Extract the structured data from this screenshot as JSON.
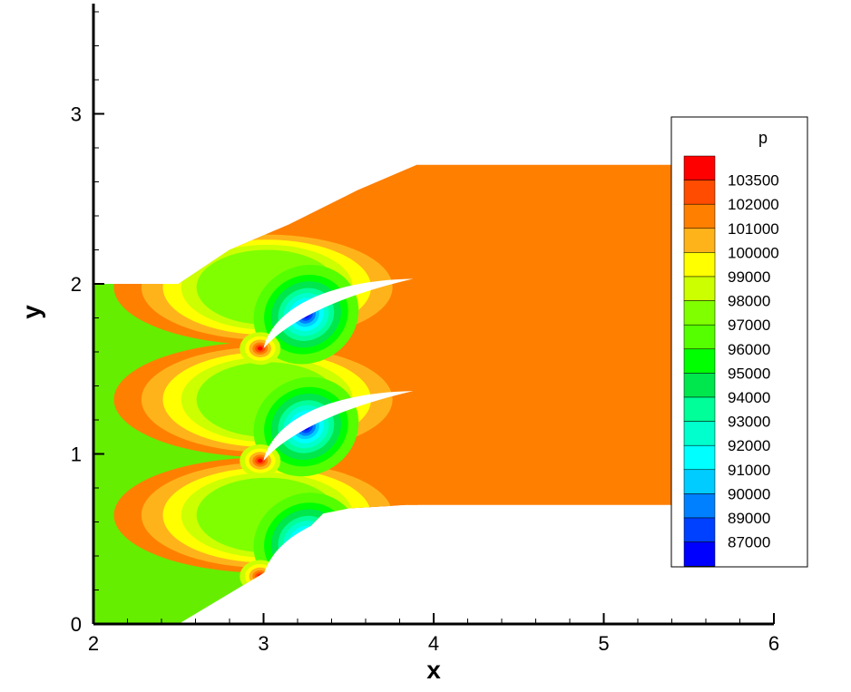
{
  "chart_data": {
    "type": "heatmap",
    "xlabel": "x",
    "ylabel": "y",
    "xlim": [
      2,
      6
    ],
    "ylim": [
      0,
      3.7
    ],
    "x_ticks": [
      2,
      3,
      4,
      5,
      6
    ],
    "y_ticks": [
      0,
      1,
      2,
      3
    ],
    "legend": {
      "title": "p",
      "placement": "right",
      "levels": [
        {
          "value": "103500",
          "color": "#ff0000"
        },
        {
          "value": "102000",
          "color": "#ff4c00"
        },
        {
          "value": "101000",
          "color": "#ff8000"
        },
        {
          "value": "100000",
          "color": "#ffb31a"
        },
        {
          "value": "99000",
          "color": "#ffff00"
        },
        {
          "value": "98000",
          "color": "#ccff00"
        },
        {
          "value": "97000",
          "color": "#80ff00"
        },
        {
          "value": "96000",
          "color": "#55ff00"
        },
        {
          "value": "95000",
          "color": "#00ff00"
        },
        {
          "value": "94000",
          "color": "#00e64d"
        },
        {
          "value": "93000",
          "color": "#00ff99"
        },
        {
          "value": "92000",
          "color": "#00ffcc"
        },
        {
          "value": "91000",
          "color": "#00ffff"
        },
        {
          "value": "90000",
          "color": "#00ccff"
        },
        {
          "value": "89000",
          "color": "#0080ff"
        },
        {
          "value": "87000",
          "color": "#0040ff"
        },
        {
          "value": "",
          "color": "#0000ff"
        }
      ]
    },
    "regions": {
      "inlet_pressure_color": "#66ee00",
      "outlet_pressure_color": "#ff7f00"
    },
    "domain_outline": [
      [
        2.0,
        0.0
      ],
      [
        2.5,
        0.0
      ],
      [
        3.0,
        0.3
      ],
      [
        3.35,
        0.65
      ],
      [
        3.5,
        0.68
      ],
      [
        3.85,
        0.7
      ],
      [
        6.0,
        0.7
      ],
      [
        6.0,
        2.7
      ],
      [
        3.9,
        2.7
      ],
      [
        3.55,
        2.55
      ],
      [
        3.15,
        2.35
      ],
      [
        2.8,
        2.2
      ],
      [
        2.5,
        2.0
      ],
      [
        2.0,
        2.0
      ]
    ],
    "blades": [
      {
        "leading_edge": [
          3.0,
          0.28
        ],
        "trailing_edge": [
          3.85,
          0.7
        ]
      },
      {
        "leading_edge": [
          3.0,
          0.96
        ],
        "trailing_edge": [
          3.88,
          1.37
        ]
      },
      {
        "leading_edge": [
          3.0,
          1.62
        ],
        "trailing_edge": [
          3.88,
          2.03
        ]
      }
    ]
  }
}
